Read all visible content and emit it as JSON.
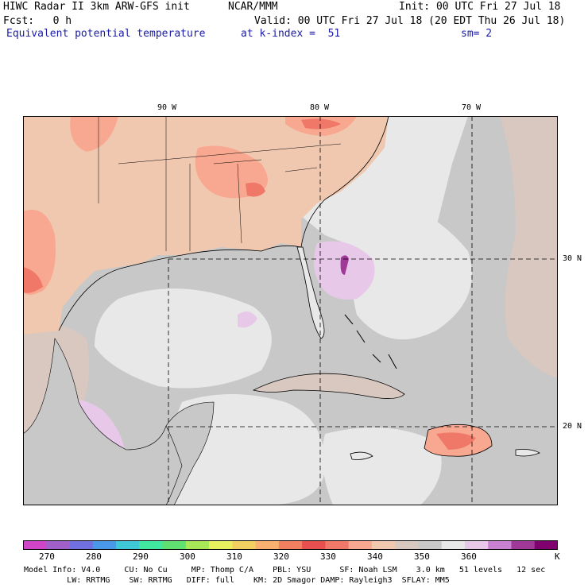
{
  "header": {
    "title": "HIWC Radar II 3km ARW-GFS init",
    "org": "NCAR/MMM",
    "init": "Init: 00 UTC Fri 27 Jul 18",
    "fcst": "Fcst:   0 h",
    "valid": "Valid: 00 UTC Fri 27 Jul 18 (20 EDT Thu 26 Jul 18)",
    "field": "Equivalent potential temperature",
    "level": "at k-index =  51",
    "sm": "sm= 2"
  },
  "map": {
    "lon_labels": [
      "90 W",
      "80 W",
      "70 W"
    ],
    "lat_labels": [
      "30 N",
      "20 N"
    ]
  },
  "colorbar": {
    "colors": [
      "#d045c8",
      "#a060c8",
      "#7070e0",
      "#4a98e8",
      "#40c8d8",
      "#40e8a0",
      "#60e070",
      "#a8e858",
      "#e8f060",
      "#f0d060",
      "#f8b070",
      "#f08060",
      "#e85050",
      "#f07868",
      "#f8a890",
      "#f0c8b0",
      "#d8c8c0",
      "#c8c8c8",
      "#e8e8e8",
      "#e8c8e8",
      "#c880d0",
      "#a03898",
      "#800070"
    ],
    "ticks": [
      "270",
      "280",
      "290",
      "300",
      "310",
      "320",
      "330",
      "340",
      "350",
      "360",
      "K"
    ]
  },
  "footer": {
    "line1": "Model Info: V4.0     CU: No Cu     MP: Thomp C/A    PBL: YSU      SF: Noah LSM    3.0 km   51 levels   12 sec",
    "line2": "         LW: RRTMG    SW: RRTMG   DIFF: full    KM: 2D Smagor DAMP: Rayleigh3  SFLAY: MM5"
  }
}
